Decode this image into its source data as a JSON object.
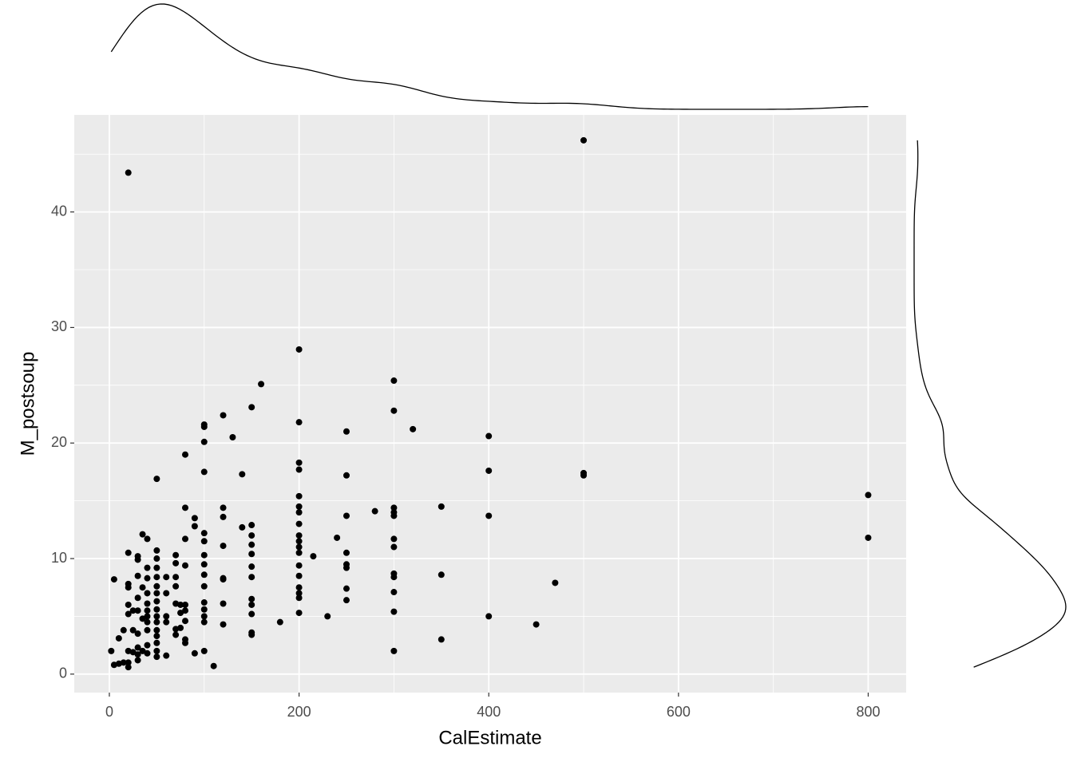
{
  "chart_data": {
    "type": "scatter",
    "xlabel": "CalEstimate",
    "ylabel": "M_postsoup",
    "color": "#000000",
    "marginal": "density",
    "grid": true,
    "xlim": [
      -37,
      840
    ],
    "ylim": [
      -1.6,
      48.4
    ],
    "xticks": [
      0,
      200,
      400,
      600,
      800
    ],
    "yticks": [
      0,
      10,
      20,
      30,
      40
    ],
    "minor_xgrid": [
      100,
      300,
      500,
      700
    ],
    "minor_ygrid": [
      5,
      15,
      25,
      35,
      45
    ],
    "x": [
      500,
      500,
      500,
      800,
      800,
      470,
      450,
      400,
      400,
      400,
      400,
      350,
      350,
      350,
      320,
      300,
      300,
      300,
      300,
      300,
      300,
      300,
      300,
      300,
      300,
      300,
      300,
      280,
      250,
      250,
      250,
      250,
      250,
      250,
      250,
      250,
      240,
      230,
      215,
      200,
      200,
      200,
      200,
      200,
      200,
      200,
      200,
      200,
      200,
      200,
      200,
      200,
      200,
      200,
      200,
      200,
      200,
      180,
      160,
      150,
      150,
      150,
      150,
      150,
      150,
      150,
      150,
      150,
      150,
      150,
      150,
      140,
      140,
      130,
      120,
      120,
      120,
      120,
      120,
      120,
      120,
      120,
      110,
      100,
      100,
      100,
      100,
      100,
      100,
      100,
      100,
      100,
      100,
      100,
      100,
      100,
      100,
      100,
      90,
      90,
      90,
      80,
      80,
      80,
      80,
      80,
      80,
      80,
      80,
      80,
      75,
      75,
      75,
      70,
      70,
      70,
      70,
      70,
      70,
      70,
      60,
      60,
      60,
      60,
      60,
      50,
      50,
      50,
      50,
      50,
      50,
      50,
      50,
      50,
      50,
      50,
      50,
      50,
      50,
      50,
      50,
      40,
      40,
      40,
      40,
      40,
      40,
      40,
      40,
      40,
      40,
      40,
      35,
      35,
      35,
      35,
      30,
      30,
      30,
      30,
      30,
      30,
      30,
      30,
      30,
      25,
      25,
      25,
      20,
      20,
      20,
      20,
      20,
      20,
      20,
      20,
      20,
      15,
      15,
      10,
      10,
      5,
      5,
      2
    ],
    "y": [
      46.2,
      17.4,
      17.2,
      15.5,
      11.8,
      7.9,
      4.3,
      20.6,
      17.6,
      13.7,
      5.0,
      14.5,
      8.6,
      3.0,
      21.2,
      25.4,
      22.8,
      14.4,
      14.0,
      13.7,
      11.7,
      11.0,
      8.7,
      8.4,
      7.1,
      5.4,
      2.0,
      14.1,
      21.0,
      17.2,
      13.7,
      10.5,
      9.5,
      9.2,
      7.4,
      6.4,
      11.8,
      5.0,
      10.2,
      28.1,
      21.8,
      18.3,
      17.7,
      15.4,
      14.5,
      14.0,
      13.0,
      12.0,
      11.5,
      11.0,
      10.5,
      9.4,
      8.5,
      7.5,
      7.0,
      6.6,
      5.3,
      4.5,
      25.1,
      23.1,
      12.9,
      12.0,
      11.2,
      10.4,
      9.3,
      8.4,
      6.5,
      6.0,
      5.2,
      3.6,
      3.4,
      17.3,
      12.7,
      20.5,
      22.4,
      14.4,
      13.6,
      11.1,
      8.3,
      8.2,
      6.1,
      4.3,
      0.7,
      21.6,
      21.4,
      20.1,
      17.5,
      12.2,
      11.5,
      10.3,
      9.5,
      8.6,
      7.6,
      6.2,
      5.6,
      5.0,
      4.5,
      2.0,
      13.5,
      12.8,
      1.8,
      19.0,
      14.4,
      11.7,
      9.4,
      6.0,
      5.5,
      4.6,
      3.0,
      2.7,
      5.3,
      4.0,
      6.0,
      10.3,
      9.6,
      8.4,
      7.6,
      6.1,
      3.9,
      3.4,
      8.4,
      7.0,
      5.0,
      4.5,
      1.6,
      16.9,
      10.7,
      10.0,
      9.2,
      8.4,
      7.6,
      7.0,
      6.3,
      5.6,
      5.0,
      4.5,
      3.8,
      3.3,
      2.7,
      2.0,
      1.5,
      11.7,
      9.2,
      8.3,
      7.0,
      6.1,
      5.5,
      5.0,
      4.5,
      3.8,
      2.5,
      1.8,
      12.1,
      7.5,
      4.8,
      2.0,
      10.2,
      9.9,
      8.5,
      6.6,
      5.5,
      3.5,
      2.3,
      1.7,
      1.2,
      5.5,
      3.8,
      1.9,
      43.4,
      10.5,
      7.8,
      7.5,
      6.0,
      5.2,
      2.0,
      1.0,
      0.6,
      3.8,
      1.0,
      3.1,
      0.9,
      8.2,
      0.8,
      2.0
    ]
  }
}
